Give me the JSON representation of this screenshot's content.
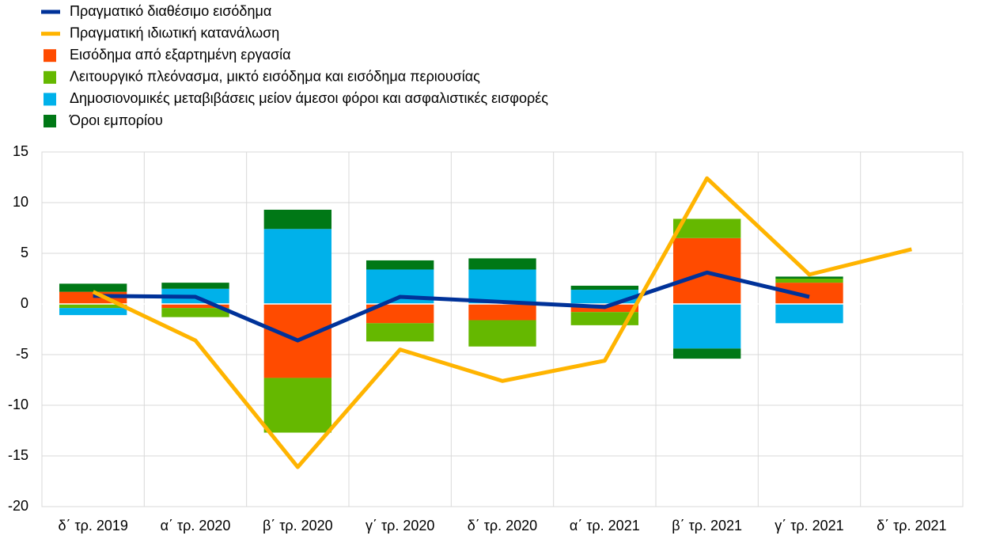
{
  "chart_data": {
    "type": "bar",
    "categories": [
      "δ΄ τρ. 2019",
      "α΄ τρ. 2020",
      "β΄ τρ. 2020",
      "γ΄ τρ. 2020",
      "δ΄ τρ. 2020",
      "α΄ τρ. 2021",
      "β΄ τρ. 2021",
      "γ΄ τρ. 2021",
      "δ΄ τρ. 2021"
    ],
    "series": [
      {
        "name": "Πραγματικό διαθέσιμο εισόδημα",
        "type": "line",
        "color": "#003299",
        "values": [
          0.8,
          0.7,
          -3.6,
          0.7,
          0.2,
          -0.3,
          3.1,
          0.7,
          null
        ]
      },
      {
        "name": "Πραγματική ιδιωτική κατανάλωση",
        "type": "line",
        "color": "#ffb400",
        "values": [
          1.2,
          -3.6,
          -16.1,
          -4.5,
          -7.6,
          -5.6,
          12.4,
          2.9,
          5.4
        ]
      },
      {
        "name": "Εισόδημα από εξαρτημένη εργασία",
        "type": "bar",
        "color": "#ff4b00",
        "values": [
          1.2,
          -0.4,
          -7.3,
          -1.9,
          -1.6,
          -0.8,
          6.5,
          2.1,
          null
        ]
      },
      {
        "name": "Λειτουργικό πλεόνασμα, μικτό εισόδημα και εισόδημα περιουσίας",
        "type": "bar",
        "color": "#65b800",
        "values": [
          -0.4,
          -0.9,
          -5.4,
          -1.8,
          -2.6,
          -1.3,
          1.9,
          0.4,
          null
        ]
      },
      {
        "name": "Δημοσιονομικές μεταβιβάσεις μείον άμεσοι φόροι και ασφαλιστικές εισφορές",
        "type": "bar",
        "color": "#00b1ea",
        "values": [
          -0.7,
          1.5,
          7.4,
          3.4,
          3.4,
          1.4,
          -4.4,
          -1.9,
          null
        ]
      },
      {
        "name": "Όροι εμπορίου",
        "type": "bar",
        "color": "#007816",
        "values": [
          0.8,
          0.6,
          1.9,
          0.9,
          1.1,
          0.4,
          -1.0,
          0.2,
          null
        ]
      }
    ],
    "ylim": [
      -20,
      15
    ],
    "yticks": [
      -20,
      -15,
      -10,
      -5,
      0,
      5,
      10,
      15
    ],
    "grid": true
  }
}
